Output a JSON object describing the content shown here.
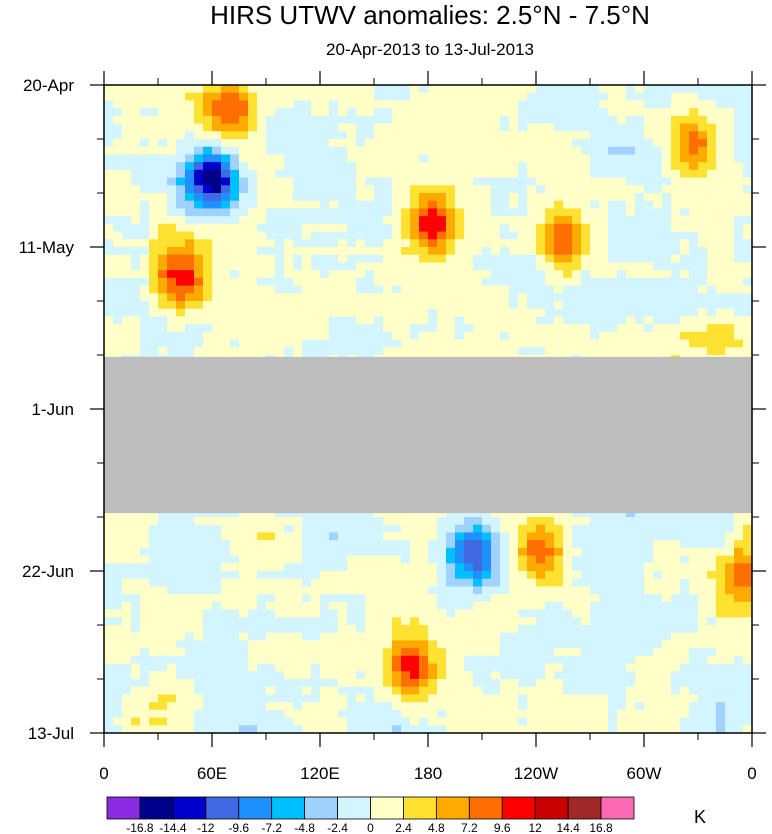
{
  "chart_data": {
    "type": "heatmap",
    "title": "HIRS UTWV anomalies: 2.5°N - 7.5°N",
    "subtitle": "20-Apr-2013 to 13-Jul-2013",
    "xlabel": "",
    "ylabel": "",
    "x_ticks": [
      "0",
      "60E",
      "120E",
      "180",
      "120W",
      "60W",
      "0"
    ],
    "x_tick_lon": [
      0,
      60,
      120,
      180,
      240,
      300,
      360
    ],
    "y_ticks": [
      "20-Apr",
      "11-May",
      "1-Jun",
      "22-Jun",
      "13-Jul"
    ],
    "y_tick_day": [
      0,
      21,
      42,
      63,
      84
    ],
    "xlim_lon": [
      0,
      360
    ],
    "ylim_day": [
      0,
      84
    ],
    "missing_days": [
      35.5,
      55.5
    ],
    "missing_color": "#bdbdbd",
    "colorbar": {
      "unit": "K",
      "levels": [
        "-16.8",
        "-14.4",
        "-12",
        "-9.6",
        "-7.2",
        "-4.8",
        "-2.4",
        "0",
        "2.4",
        "4.8",
        "7.2",
        "9.6",
        "12",
        "14.4",
        "16.8"
      ],
      "colors": [
        "#8a2be2",
        "#00008b",
        "#0000cd",
        "#4169e1",
        "#1e90ff",
        "#00bfff",
        "#a0d2ff",
        "#d2f5ff",
        "#ffffc8",
        "#ffe132",
        "#ffaa00",
        "#ff6e00",
        "#ff0000",
        "#c80000",
        "#a02828",
        "#ff69b4"
      ]
    },
    "features": [
      {
        "lon": 60,
        "day": 12,
        "value": -14.4,
        "note": "negative anomaly cluster"
      },
      {
        "lon": 70,
        "day": 3,
        "value": 9.6,
        "note": "positive anomaly"
      },
      {
        "lon": 43,
        "day": 25,
        "value": 12,
        "note": "positive anomaly"
      },
      {
        "lon": 182,
        "day": 18,
        "value": 12,
        "note": "positive anomaly"
      },
      {
        "lon": 255,
        "day": 20,
        "value": 9.6,
        "note": "positive anomaly"
      },
      {
        "lon": 328,
        "day": 8,
        "value": 9.6,
        "note": "positive anomaly"
      },
      {
        "lon": 244,
        "day": 60,
        "value": 9.6,
        "note": "positive anomaly"
      },
      {
        "lon": 170,
        "day": 75,
        "value": 12,
        "note": "positive anomaly"
      },
      {
        "lon": 355,
        "day": 64,
        "value": 9.6,
        "note": "positive anomaly"
      },
      {
        "lon": 205,
        "day": 61,
        "value": -12,
        "note": "negative anomaly"
      }
    ]
  }
}
